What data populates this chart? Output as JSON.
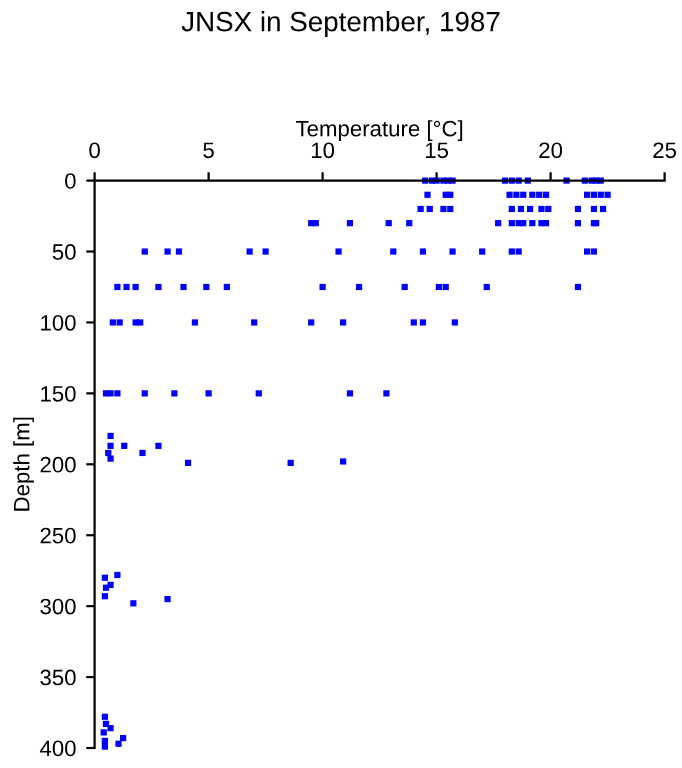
{
  "chart_data": {
    "type": "scatter",
    "title": "JNSX in September, 1987",
    "xlabel": "Temperature [°C]",
    "ylabel": "Depth [m]",
    "xlim": [
      0,
      25
    ],
    "xticks": [
      0,
      5,
      10,
      15,
      20,
      25
    ],
    "ylim": [
      400,
      0
    ],
    "yticks": [
      0,
      50,
      100,
      150,
      200,
      250,
      300,
      350,
      400
    ],
    "marker": "square",
    "grid": false,
    "legend": false,
    "series": [
      {
        "color": "#0000ff",
        "x": [
          14.5,
          14.8,
          15.0,
          15.3,
          15.5,
          15.7,
          18.0,
          18.3,
          18.6,
          19.0,
          20.7,
          21.5,
          21.8,
          22.0,
          22.2,
          14.6,
          15.4,
          15.6,
          18.2,
          18.5,
          18.8,
          19.2,
          19.5,
          19.8,
          21.6,
          21.9,
          22.2,
          22.5,
          14.3,
          14.7,
          15.3,
          15.6,
          18.3,
          18.7,
          19.1,
          19.6,
          19.9,
          21.2,
          21.9,
          22.3,
          9.5,
          9.7,
          11.2,
          12.9,
          13.8,
          17.7,
          18.3,
          18.6,
          18.8,
          19.2,
          19.6,
          19.8,
          21.2,
          21.9,
          22.0,
          2.2,
          3.2,
          3.7,
          6.8,
          7.5,
          10.7,
          13.1,
          14.4,
          15.7,
          17.0,
          18.3,
          18.6,
          21.6,
          21.9,
          1.0,
          1.4,
          1.8,
          2.8,
          3.9,
          4.9,
          5.8,
          10.0,
          11.6,
          13.6,
          15.1,
          15.4,
          17.2,
          21.2,
          0.8,
          1.1,
          1.8,
          2.0,
          4.4,
          7.0,
          9.5,
          10.9,
          14.0,
          14.4,
          15.8,
          0.5,
          0.7,
          1.0,
          2.2,
          3.5,
          5.0,
          7.2,
          11.2,
          12.8,
          0.7,
          0.7,
          1.3,
          2.8,
          0.6,
          2.1,
          0.7,
          4.1,
          8.6,
          10.9,
          0.45,
          1.0,
          0.5,
          0.7,
          0.45,
          1.7,
          3.2,
          0.45,
          0.5,
          0.7,
          0.4,
          0.45,
          0.45,
          1.05,
          1.25
        ],
        "values": [
          0,
          0,
          0,
          0,
          0,
          0,
          0,
          0,
          0,
          0,
          0,
          0,
          0,
          0,
          0,
          10,
          10,
          10,
          10,
          10,
          10,
          10,
          10,
          10,
          10,
          10,
          10,
          10,
          20,
          20,
          20,
          20,
          20,
          20,
          20,
          20,
          20,
          20,
          20,
          20,
          30,
          30,
          30,
          30,
          30,
          30,
          30,
          30,
          30,
          30,
          30,
          30,
          30,
          30,
          30,
          50,
          50,
          50,
          50,
          50,
          50,
          50,
          50,
          50,
          50,
          50,
          50,
          50,
          50,
          75,
          75,
          75,
          75,
          75,
          75,
          75,
          75,
          75,
          75,
          75,
          75,
          75,
          75,
          100,
          100,
          100,
          100,
          100,
          100,
          100,
          100,
          100,
          100,
          100,
          150,
          150,
          150,
          150,
          150,
          150,
          150,
          150,
          150,
          180,
          187,
          187,
          187,
          192,
          192,
          196,
          199,
          199,
          198,
          280,
          278,
          287,
          285,
          293,
          298,
          295,
          378,
          383,
          386,
          389,
          395,
          399,
          397,
          393
        ]
      }
    ]
  }
}
